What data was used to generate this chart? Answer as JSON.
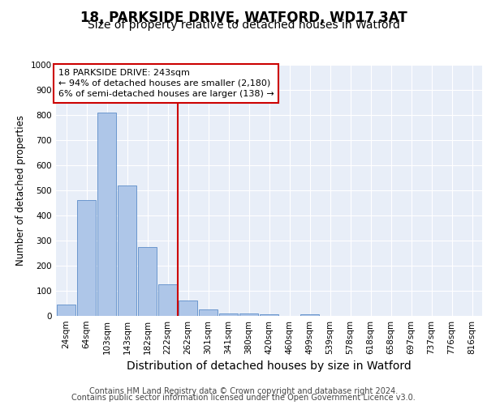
{
  "title1": "18, PARKSIDE DRIVE, WATFORD, WD17 3AT",
  "title2": "Size of property relative to detached houses in Watford",
  "xlabel": "Distribution of detached houses by size in Watford",
  "ylabel": "Number of detached properties",
  "categories": [
    "24sqm",
    "64sqm",
    "103sqm",
    "143sqm",
    "182sqm",
    "222sqm",
    "262sqm",
    "301sqm",
    "341sqm",
    "380sqm",
    "420sqm",
    "460sqm",
    "499sqm",
    "539sqm",
    "578sqm",
    "618sqm",
    "658sqm",
    "697sqm",
    "737sqm",
    "776sqm",
    "816sqm"
  ],
  "values": [
    45,
    460,
    810,
    520,
    275,
    125,
    60,
    25,
    10,
    10,
    5,
    0,
    8,
    0,
    0,
    0,
    0,
    0,
    0,
    0,
    0
  ],
  "bar_color": "#aec6e8",
  "bar_edge_color": "#5b8cc8",
  "vline_color": "#cc0000",
  "vline_x": 5.5,
  "annotation_box_text": "18 PARKSIDE DRIVE: 243sqm\n← 94% of detached houses are smaller (2,180)\n6% of semi-detached houses are larger (138) →",
  "ylim": [
    0,
    1000
  ],
  "yticks": [
    0,
    100,
    200,
    300,
    400,
    500,
    600,
    700,
    800,
    900,
    1000
  ],
  "plot_bg_color": "#e8eef8",
  "grid_color": "#ffffff",
  "footer_line1": "Contains HM Land Registry data © Crown copyright and database right 2024.",
  "footer_line2": "Contains public sector information licensed under the Open Government Licence v3.0.",
  "title1_fontsize": 12,
  "title2_fontsize": 10,
  "tick_fontsize": 7.5,
  "xlabel_fontsize": 10,
  "ylabel_fontsize": 8.5,
  "footer_fontsize": 7,
  "ann_fontsize": 8
}
